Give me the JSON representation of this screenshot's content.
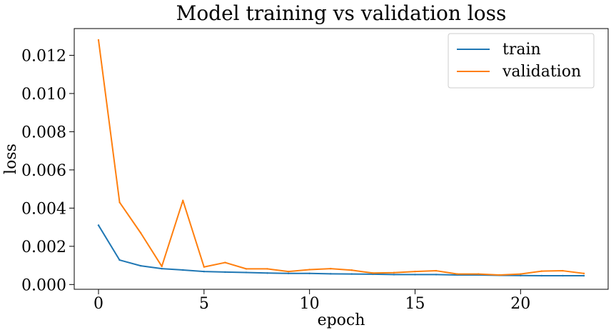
{
  "chart_data": {
    "type": "line",
    "title": "Model training vs validation loss",
    "xlabel": "epoch",
    "ylabel": "loss",
    "xlim": [
      -1.15,
      24.15
    ],
    "ylim": [
      -0.00025,
      0.0134
    ],
    "xticks": [
      0,
      5,
      10,
      15,
      20
    ],
    "xtick_labels": [
      "0",
      "5",
      "10",
      "15",
      "20"
    ],
    "yticks": [
      0.0,
      0.002,
      0.004,
      0.006,
      0.008,
      0.01,
      0.012
    ],
    "ytick_labels": [
      "0.000",
      "0.002",
      "0.004",
      "0.006",
      "0.008",
      "0.010",
      "0.012"
    ],
    "grid": false,
    "legend_position": "top-right",
    "x": [
      0,
      1,
      2,
      3,
      4,
      5,
      6,
      7,
      8,
      9,
      10,
      11,
      12,
      13,
      14,
      15,
      16,
      17,
      18,
      19,
      20,
      21,
      22,
      23
    ],
    "series": [
      {
        "name": "train",
        "color": "#1f77b4",
        "values": [
          0.0031,
          0.00128,
          0.00098,
          0.00083,
          0.00076,
          0.00068,
          0.00065,
          0.00063,
          0.0006,
          0.00058,
          0.00058,
          0.00056,
          0.00055,
          0.00054,
          0.00052,
          0.00052,
          0.00052,
          0.0005,
          0.0005,
          0.00048,
          0.00047,
          0.00046,
          0.00046,
          0.00046
        ]
      },
      {
        "name": "validation",
        "color": "#ff7f0e",
        "values": [
          0.0128,
          0.0043,
          0.0027,
          0.00095,
          0.0044,
          0.00092,
          0.00115,
          0.00082,
          0.00082,
          0.00068,
          0.00078,
          0.00083,
          0.00075,
          0.0006,
          0.00062,
          0.00068,
          0.00072,
          0.00055,
          0.00055,
          0.0005,
          0.00055,
          0.0007,
          0.00072,
          0.00058
        ]
      }
    ]
  }
}
